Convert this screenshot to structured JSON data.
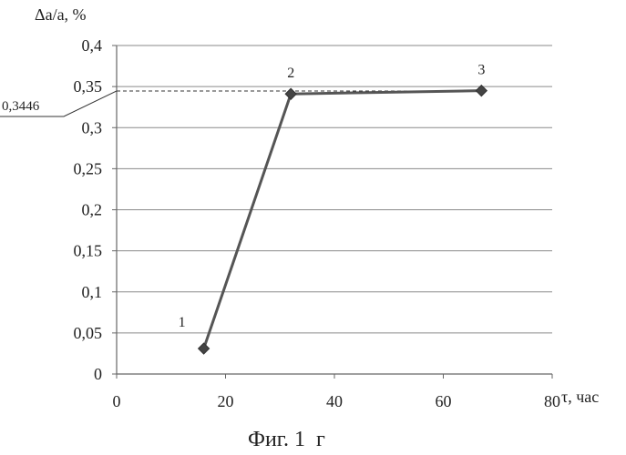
{
  "chart_data": {
    "type": "line",
    "ylabel": "Δa/a, %",
    "xlabel": "τ, час",
    "caption": "Фиг. 1  г",
    "xlim": [
      0,
      80
    ],
    "ylim": [
      0,
      0.4
    ],
    "x_ticks": [
      0,
      20,
      40,
      60,
      80
    ],
    "x_tick_labels": [
      "0",
      "20",
      "40",
      "60",
      "80"
    ],
    "y_ticks": [
      0,
      0.05,
      0.1,
      0.15,
      0.2,
      0.25,
      0.3,
      0.35,
      0.4
    ],
    "y_tick_labels": [
      "0",
      "0,05",
      "0,1",
      "0,15",
      "0,2",
      "0,25",
      "0,3",
      "0,35",
      "0,4"
    ],
    "grid": "horizontal",
    "series": [
      {
        "color": "#555555",
        "marker": "diamond",
        "points": [
          {
            "x": 16,
            "y": 0.031,
            "label": "1"
          },
          {
            "x": 32,
            "y": 0.341,
            "label": "2"
          },
          {
            "x": 67,
            "y": 0.345,
            "label": "3"
          }
        ]
      }
    ],
    "reference_line": {
      "y": 0.3446,
      "label": "0,3446",
      "style": "dashed"
    }
  }
}
